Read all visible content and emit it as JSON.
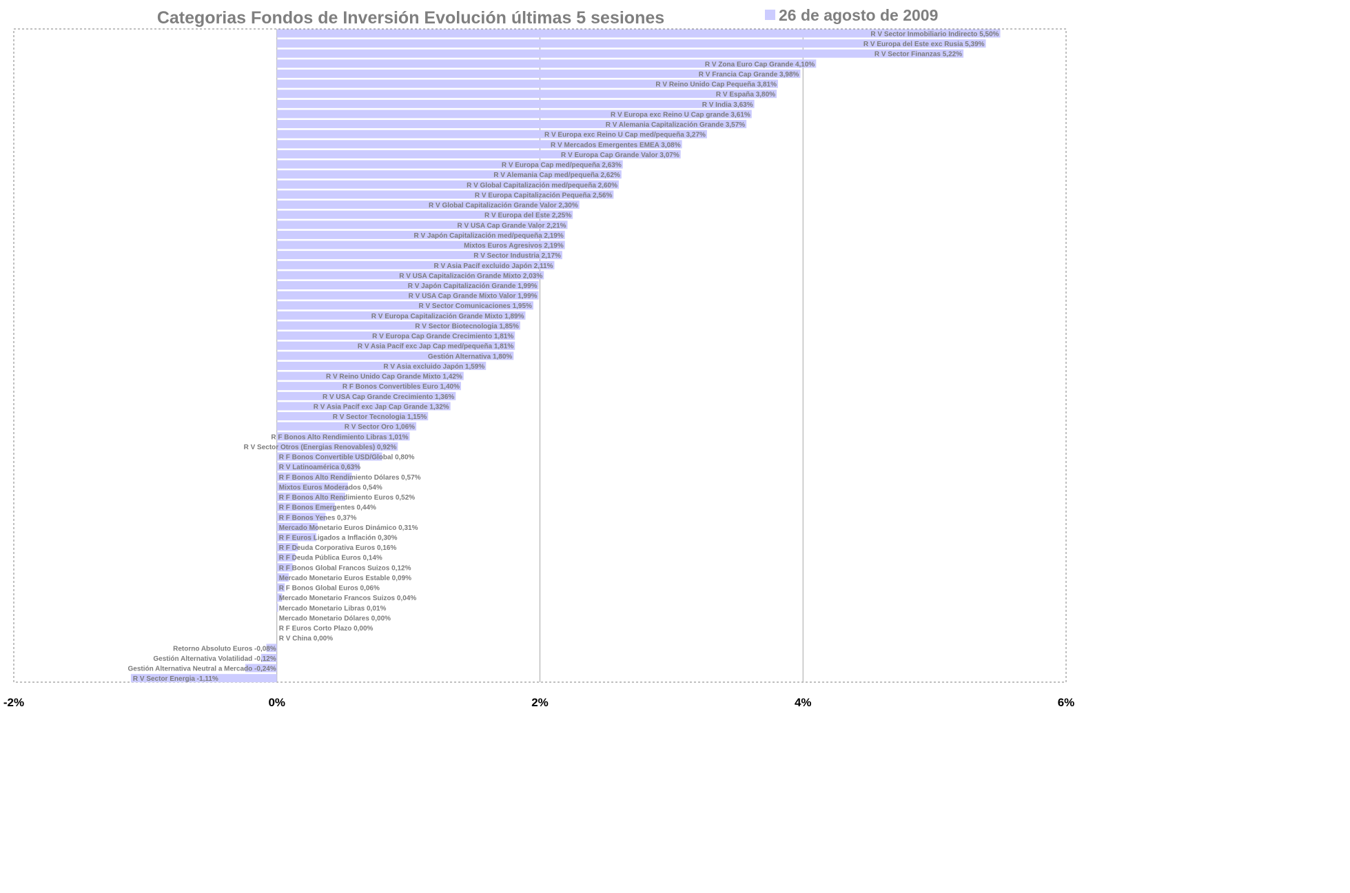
{
  "chart_data": {
    "type": "bar",
    "orientation": "horizontal",
    "title": "Categorias Fondos de Inversión Evolución últimas 5 sesiones",
    "legend_position": "top-right",
    "series": [
      {
        "name": "26 de agosto de 2009",
        "color": "#ccccff",
        "labels": [
          "R V Sector Inmobiliario Indirecto 5,50%",
          "R V Europa del Este exc Rusia 5,39%",
          "R V Sector Finanzas 5,22%",
          "R V Zona Euro Cap Grande 4,10%",
          "R V Francia Cap Grande 3,98%",
          "R V Reino Unido Cap Pequeña 3,81%",
          "R V España 3,80%",
          "R V India 3,63%",
          "R V Europa exc Reino U Cap grande 3,61%",
          "R V Alemania Capitalización Grande 3,57%",
          "R V Europa exc Reino U Cap med/pequeña 3,27%",
          "R V Mercados Emergentes EMEA 3,08%",
          "R V Europa Cap Grande Valor 3,07%",
          "R V Europa Cap med/pequeña 2,63%",
          "R V Alemania Cap med/pequeña 2,62%",
          "R V Global Capitalización med/pequeña 2,60%",
          "R V Europa Capitalización Pequeña 2,56%",
          "R V Global Capitalización Grande Valor 2,30%",
          "R V Europa del Este 2,25%",
          "R V USA Cap Grande Valor 2,21%",
          "R V Japón Capitalización med/pequeña 2,19%",
          "Mixtos Euros Agresivos 2,19%",
          "R V Sector Industria 2,17%",
          "R V Asia Pacíf excluido Japón 2,11%",
          "R V USA Capitalización Grande Mixto 2,03%",
          "R V Japón Capitalización Grande 1,99%",
          "R V USA Cap Grande Mixto Valor 1,99%",
          "R V Sector Comunicaciones 1,95%",
          "R V Europa Capitalización Grande Mixto 1,89%",
          "R V Sector Biotecnologia 1,85%",
          "R V Europa Cap Grande Crecimiento 1,81%",
          "R V Asia Pacíf exc Jap Cap med/pequeña 1,81%",
          "Gestión Alternativa 1,80%",
          "R V Asia excluido Japón 1,59%",
          "R V Reino Unido Cap Grande Mixto 1,42%",
          "R F Bonos Convertibles Euro 1,40%",
          "R V USA Cap Grande Crecimiento 1,36%",
          "R V Asia Pacíf exc Jap Cap Grande 1,32%",
          "R V Sector Tecnologia 1,15%",
          "R V Sector Oro 1,06%",
          "R F Bonos Alto Rendimiento Libras 1,01%",
          "R V Sector Otros (Energias Renovables) 0,92%",
          "R F Bonos Convertible USD/Global 0,80%",
          "R V Latinoamérica 0,63%",
          "R F Bonos Alto Rendimiento Dólares 0,57%",
          "Mixtos Euros Moderados 0,54%",
          "R F Bonos Alto Rendimiento Euros 0,52%",
          "R F Bonos Emergentes 0,44%",
          "R F Bonos Yenes 0,37%",
          "Mercado Monetario Euros Dinámico 0,31%",
          "R F Euros Ligados a Inflación 0,30%",
          "R F Deuda Corporativa Euros 0,16%",
          "R F Deuda Pública Euros 0,14%",
          "R F Bonos Global Francos Suizos 0,12%",
          "Mercado Monetario Euros Estable 0,09%",
          "R F Bonos Global Euros 0,06%",
          "Mercado Monetario Francos Suizos 0,04%",
          "Mercado Monetario Libras 0,01%",
          "Mercado Monetario Dólares 0,00%",
          "R F Euros Corto Plazo 0,00%",
          "R V China 0,00%",
          "Retorno Absoluto Euros -0,08%",
          "Gestión Alternativa Volatilidad -0,12%",
          "Gestión Alternativa Neutral a Mercado -0,24%",
          "R V Sector Energia -1,11%"
        ],
        "values": [
          5.5,
          5.39,
          5.22,
          4.1,
          3.98,
          3.81,
          3.8,
          3.63,
          3.61,
          3.57,
          3.27,
          3.08,
          3.07,
          2.63,
          2.62,
          2.6,
          2.56,
          2.3,
          2.25,
          2.21,
          2.19,
          2.19,
          2.17,
          2.11,
          2.03,
          1.99,
          1.99,
          1.95,
          1.89,
          1.85,
          1.81,
          1.81,
          1.8,
          1.59,
          1.42,
          1.4,
          1.36,
          1.32,
          1.15,
          1.06,
          1.01,
          0.92,
          0.8,
          0.63,
          0.57,
          0.54,
          0.52,
          0.44,
          0.37,
          0.31,
          0.3,
          0.16,
          0.14,
          0.12,
          0.09,
          0.06,
          0.04,
          0.01,
          0.0,
          0.0,
          0.0,
          -0.08,
          -0.12,
          -0.24,
          -1.11
        ]
      }
    ],
    "xlim": [
      -2,
      6
    ],
    "xticks": [
      -2,
      0,
      2,
      4,
      6
    ],
    "xtick_labels": [
      "-2%",
      "0%",
      "2%",
      "4%",
      "6%"
    ],
    "grid": "vertical"
  }
}
